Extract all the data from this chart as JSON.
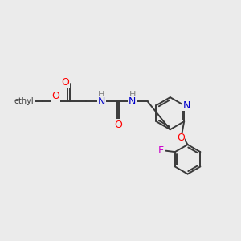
{
  "background_color": "#EBEBEB",
  "bond_color": "#3a3a3a",
  "atom_colors": {
    "O": "#FF0000",
    "N": "#0000CC",
    "F": "#CC00CC",
    "H": "#808080",
    "C": "#3a3a3a"
  },
  "figsize": [
    3.0,
    3.0
  ],
  "dpi": 100
}
